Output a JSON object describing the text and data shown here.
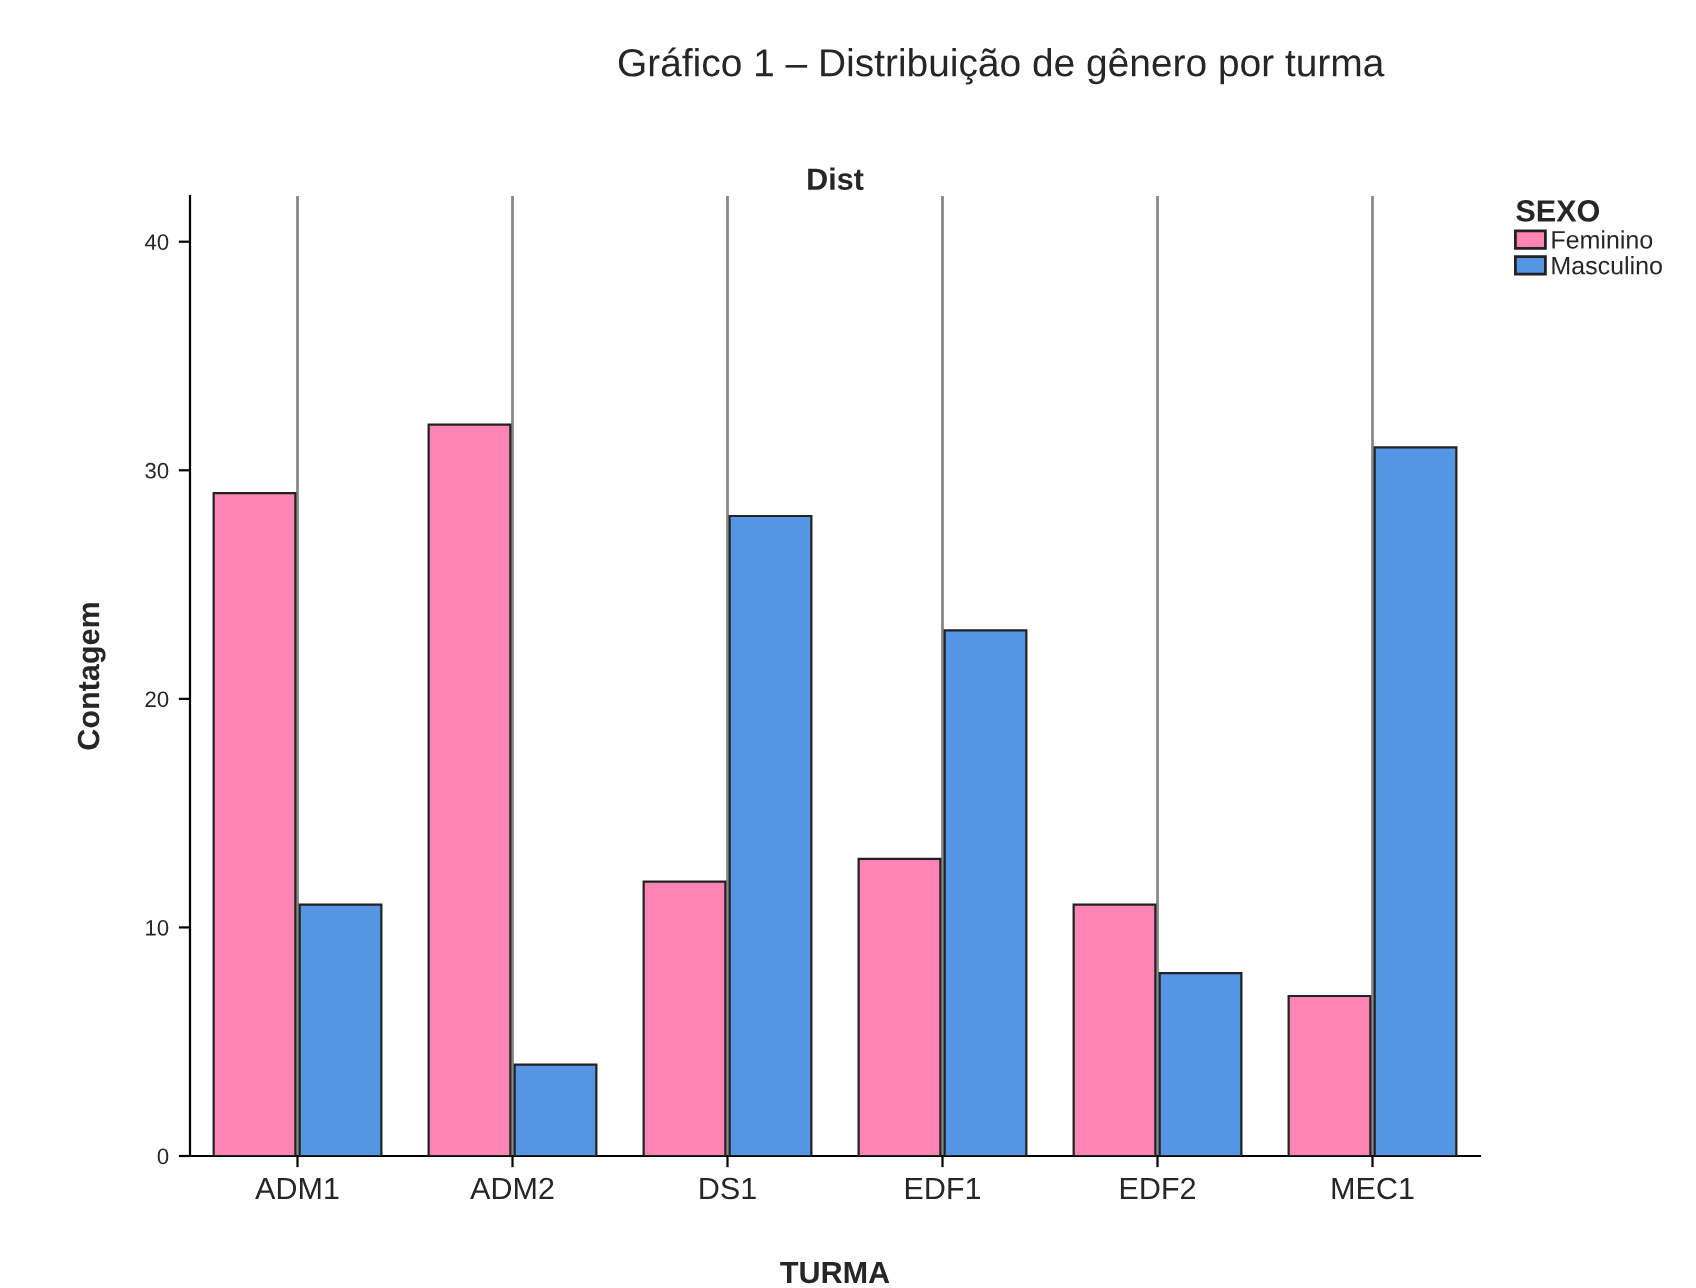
{
  "chart_data": {
    "type": "bar",
    "title": "Gráfico 1 – Distribuição de gênero por turma",
    "subtitle": "Dist",
    "xlabel": "TURMA",
    "ylabel": "Contagem",
    "legend_title": "SEXO",
    "categories": [
      "ADM1",
      "ADM2",
      "DS1",
      "EDF1",
      "EDF2",
      "MEC1"
    ],
    "series": [
      {
        "name": "Feminino",
        "color": "#fe84b3",
        "values": [
          29,
          32,
          12,
          13,
          11,
          7
        ]
      },
      {
        "name": "Masculino",
        "color": "#5495e4",
        "values": [
          11,
          4,
          28,
          23,
          8,
          31
        ]
      }
    ],
    "ylim": [
      0,
      42
    ],
    "yticks": [
      0,
      10,
      20,
      30,
      40
    ],
    "grid": "x",
    "legend": "top right"
  }
}
